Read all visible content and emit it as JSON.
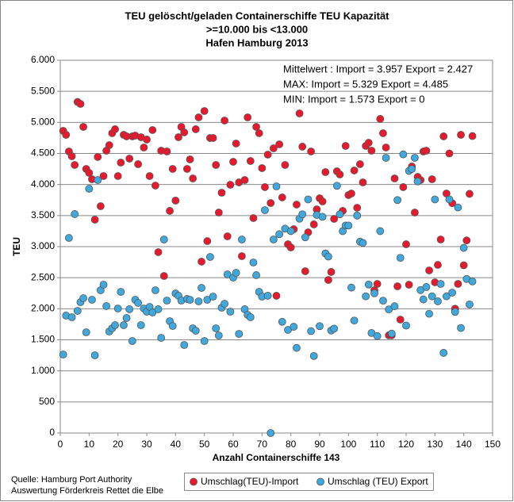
{
  "chart_data": {
    "type": "scatter",
    "title": [
      "TEU gelöscht/geladen Containerschiffe TEU Kapazität",
      ">=10.000 bis <13.000",
      "Hafen Hamburg 2013"
    ],
    "annotations": [
      "Mittelwert : Import =  3.957 Export = 2.427",
      "MAX: Import = 5.329 Export = 4.485",
      "MIN: Import = 1.573 Export = 0"
    ],
    "x_label": "Anzahl Containerschiffe 143",
    "y_label": "TEU",
    "source": [
      "Quelle: Hamburg Port Authority",
      "Auswertung Förderkreis Rettet die Elbe"
    ],
    "legend": "bottom",
    "grid": true,
    "xlim": [
      0,
      150
    ],
    "xticks": [
      0,
      10,
      20,
      30,
      40,
      50,
      60,
      70,
      80,
      90,
      100,
      110,
      120,
      130,
      140,
      150
    ],
    "ylim": [
      0,
      6000
    ],
    "yticks": [
      0,
      {
        "value": 500,
        "label": "500"
      },
      {
        "value": 1000,
        "label": "1.000"
      },
      {
        "value": 1500,
        "label": "1.500"
      },
      {
        "value": 2000,
        "label": "2.000"
      },
      {
        "value": 2500,
        "label": "2.500"
      },
      {
        "value": 3000,
        "label": "3.000"
      },
      {
        "value": 3500,
        "label": "3.500"
      },
      {
        "value": 4000,
        "label": "4.000"
      },
      {
        "value": 4500,
        "label": "4.500"
      },
      {
        "value": 5000,
        "label": "5.000"
      },
      {
        "value": 5500,
        "label": "5.500"
      },
      {
        "value": 6000,
        "label": "6.000"
      }
    ],
    "x": [
      1,
      2,
      3,
      4,
      5,
      6,
      7,
      8,
      9,
      10,
      11,
      12,
      13,
      14,
      15,
      16,
      17,
      18,
      19,
      20,
      21,
      22,
      23,
      24,
      25,
      26,
      27,
      28,
      29,
      30,
      31,
      32,
      33,
      34,
      35,
      36,
      37,
      38,
      39,
      40,
      41,
      42,
      43,
      44,
      45,
      46,
      47,
      48,
      49,
      50,
      51,
      52,
      53,
      54,
      55,
      56,
      57,
      58,
      59,
      60,
      61,
      62,
      63,
      64,
      65,
      66,
      67,
      68,
      69,
      70,
      71,
      72,
      73,
      74,
      75,
      76,
      77,
      78,
      79,
      80,
      81,
      82,
      83,
      84,
      85,
      86,
      87,
      88,
      89,
      90,
      91,
      92,
      93,
      94,
      95,
      96,
      97,
      98,
      99,
      100,
      101,
      102,
      103,
      104,
      105,
      106,
      107,
      108,
      109,
      110,
      111,
      112,
      113,
      114,
      115,
      116,
      117,
      118,
      119,
      120,
      121,
      122,
      123,
      124,
      125,
      126,
      127,
      128,
      129,
      130,
      131,
      132,
      133,
      134,
      135,
      136,
      137,
      138,
      139,
      140,
      141,
      142,
      143
    ],
    "series": [
      {
        "name": "Umschlag(TEU)-Import",
        "color": "#e8192c",
        "values": [
          4864,
          4800,
          4532,
          4455,
          4315,
          5329,
          5298,
          4928,
          4251,
          4187,
          4085,
          3434,
          4443,
          3651,
          4136,
          4545,
          4634,
          4826,
          4890,
          4136,
          4353,
          4800,
          4775,
          4417,
          4775,
          4787,
          4328,
          4762,
          4596,
          4724,
          4136,
          4877,
          3983,
          2911,
          4545,
          2528,
          4532,
          3575,
          4251,
          3741,
          4762,
          4928,
          4839,
          4251,
          4404,
          4098,
          4890,
          5081,
          2758,
          5183,
          3089,
          4749,
          4749,
          4315,
          3549,
          3868,
          5030,
          3166,
          3996,
          4366,
          4660,
          4034,
          2847,
          4072,
          5081,
          4379,
          3460,
          4928,
          4826,
          4264,
          3958,
          4481,
          3702,
          4583,
          2209,
          4647,
          3792,
          4315,
          3038,
          2987,
          3281,
          3677,
          5145,
          4609,
          2604,
          3230,
          4532,
          3358,
          3600,
          3779,
          3728,
          4200,
          2464,
          2592,
          3447,
          4213,
          4162,
          3575,
          4621,
          3830,
          3855,
          4226,
          3626,
          4328,
          4034,
          4621,
          4672,
          4545,
          2298,
          2400,
          5056,
          4826,
          4596,
          1573,
          1573,
          4098,
          2362,
          1826,
          3958,
          3038,
          2387,
          4290,
          3549,
          4123,
          4072,
          4532,
          4545,
          2617,
          4085,
          2426,
          2706,
          3115,
          4775,
          3855,
          4500,
          3700,
          2000,
          2400,
          4800,
          2700,
          3100,
          3850,
          4780
        ]
      },
      {
        "name": "Umschlag (TEU) Export",
        "color": "#3fa9de",
        "values": [
          1264,
          1890,
          3140,
          1864,
          3524,
          1966,
          2106,
          2170,
          1621,
          3932,
          2145,
          1251,
          4072,
          2298,
          2387,
          2043,
          1634,
          1685,
          1736,
          2004,
          2272,
          1736,
          1851,
          1992,
          1481,
          2145,
          2094,
          1736,
          2004,
          1953,
          2030,
          1940,
          2298,
          1992,
          1532,
          3115,
          2132,
          1800,
          1723,
          2247,
          2209,
          2132,
          1417,
          2158,
          2145,
          1685,
          1647,
          2119,
          2336,
          1481,
          2145,
          2834,
          2196,
          1685,
          1570,
          2017,
          2081,
          2553,
          1953,
          2502,
          2579,
          1596,
          3115,
          1992,
          1902,
          1864,
          2745,
          2541,
          2272,
          2196,
          3587,
          2209,
          0,
          3115,
          3970,
          3200,
          1790,
          3290,
          1660,
          3250,
          1710,
          1370,
          3450,
          3520,
          3150,
          3760,
          1640,
          1240,
          3510,
          1720,
          3480,
          2890,
          2840,
          1650,
          1680,
          3980,
          3520,
          3250,
          3340,
          3340,
          2340,
          1810,
          3500,
          3080,
          3060,
          2200,
          2390,
          1610,
          2250,
          1560,
          3250,
          2130,
          4430,
          1990,
          1600,
          2040,
          3750,
          2820,
          4485,
          1730,
          4220,
          4250,
          4430,
          4050,
          2300,
          2150,
          2350,
          1920,
          2200,
          3760,
          2120,
          2400,
          1290,
          2200,
          3760,
          2260,
          1950,
          3630,
          1690,
          2980,
          2480,
          2070,
          2440
        ]
      }
    ]
  }
}
